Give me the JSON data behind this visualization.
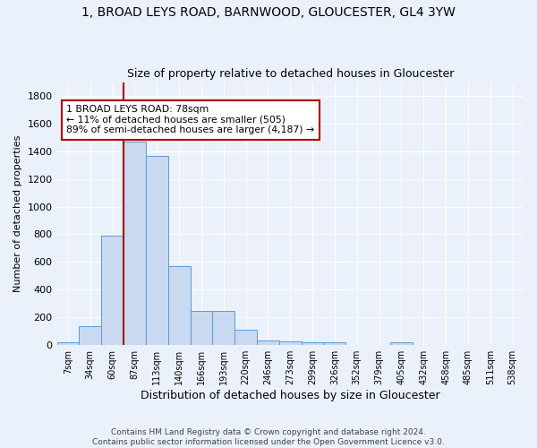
{
  "title": "1, BROAD LEYS ROAD, BARNWOOD, GLOUCESTER, GL4 3YW",
  "subtitle": "Size of property relative to detached houses in Gloucester",
  "xlabel": "Distribution of detached houses by size in Gloucester",
  "ylabel": "Number of detached properties",
  "bar_labels": [
    "7sqm",
    "34sqm",
    "60sqm",
    "87sqm",
    "113sqm",
    "140sqm",
    "166sqm",
    "193sqm",
    "220sqm",
    "246sqm",
    "273sqm",
    "299sqm",
    "326sqm",
    "352sqm",
    "379sqm",
    "405sqm",
    "432sqm",
    "458sqm",
    "485sqm",
    "511sqm",
    "538sqm"
  ],
  "bar_values": [
    15,
    135,
    790,
    1470,
    1370,
    570,
    245,
    245,
    110,
    30,
    25,
    15,
    15,
    0,
    0,
    15,
    0,
    0,
    0,
    0,
    0
  ],
  "bar_color": "#c9d9f0",
  "bar_edge_color": "#5b9bd5",
  "annotation_text": "1 BROAD LEYS ROAD: 78sqm\n← 11% of detached houses are smaller (505)\n89% of semi-detached houses are larger (4,187) →",
  "vline_bin_index": 2,
  "ylim": [
    0,
    1900
  ],
  "yticks": [
    0,
    200,
    400,
    600,
    800,
    1000,
    1200,
    1400,
    1600,
    1800
  ],
  "footer_line1": "Contains HM Land Registry data © Crown copyright and database right 2024.",
  "footer_line2": "Contains public sector information licensed under the Open Government Licence v3.0.",
  "bg_color": "#eaf1fb",
  "annotation_box_color": "#ffffff",
  "annotation_box_edge": "#aa0000",
  "vline_color": "#aa0000",
  "title_fontsize": 10,
  "subtitle_fontsize": 9
}
